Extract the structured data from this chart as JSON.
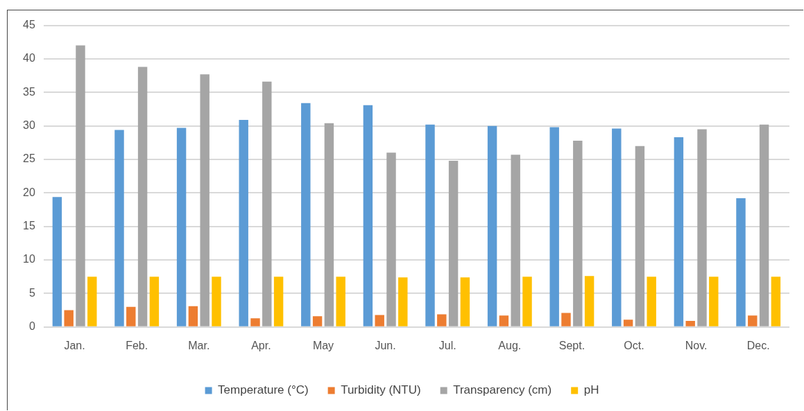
{
  "chart_data": {
    "type": "bar",
    "categories": [
      "Jan.",
      "Feb.",
      "Mar.",
      "Apr.",
      "May",
      "Jun.",
      "Jul.",
      "Aug.",
      "Sept.",
      "Oct.",
      "Nov.",
      "Dec."
    ],
    "series": [
      {
        "name": "Temperature (°C)",
        "color": "#5b9bd5",
        "values": [
          19.4,
          29.4,
          29.7,
          30.9,
          33.4,
          33.1,
          30.2,
          30.0,
          29.8,
          29.6,
          28.3,
          19.2
        ]
      },
      {
        "name": "Turbidity (NTU)",
        "color": "#ed7d31",
        "values": [
          2.5,
          3.0,
          3.1,
          1.3,
          1.6,
          1.8,
          1.9,
          1.7,
          2.1,
          1.1,
          0.9,
          1.7
        ]
      },
      {
        "name": "Transparency (cm)",
        "color": "#a5a5a5",
        "values": [
          42.0,
          38.8,
          37.7,
          36.6,
          30.4,
          26.0,
          24.8,
          25.7,
          27.8,
          27.0,
          29.5,
          30.2
        ]
      },
      {
        "name": "pH",
        "color": "#ffc000",
        "values": [
          7.5,
          7.5,
          7.5,
          7.5,
          7.5,
          7.4,
          7.4,
          7.5,
          7.6,
          7.5,
          7.5,
          7.5
        ]
      }
    ],
    "ylim": [
      0,
      45
    ],
    "yticks": [
      0,
      5,
      10,
      15,
      20,
      25,
      30,
      35,
      40,
      45
    ],
    "grid": "y",
    "legend": "bottom"
  }
}
